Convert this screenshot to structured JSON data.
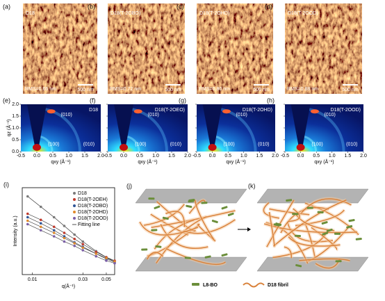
{
  "afm": [
    {
      "label": "(a)",
      "sample": "D18",
      "rms": "RMS=0.66 nm",
      "scale": "500 nm"
    },
    {
      "label": "(b)",
      "sample": "D18(T-2OBO)",
      "rms": "RMS=0.72 nm",
      "scale": "500 nm"
    },
    {
      "label": "(c)",
      "sample": "D18(T-2OHD)",
      "rms": "RMS=0.80 nm",
      "scale": "500 nm"
    },
    {
      "label": "(d)",
      "sample": "D18(T-2OOD)",
      "rms": "RMS=0.88 nm",
      "scale": "500 nm"
    }
  ],
  "giwaxs": {
    "panels": [
      {
        "label": "(e)",
        "sample": "D18",
        "peaks": [
          "(010)",
          "(100)",
          "(010)"
        ]
      },
      {
        "label": "(f)",
        "sample": "D18(T-2OEO)",
        "peaks": [
          "(010)",
          "(100)",
          "(010)"
        ]
      },
      {
        "label": "(g)",
        "sample": "D18(T-2OHD)",
        "peaks": [
          "(010)",
          "(100)",
          "(010)"
        ]
      },
      {
        "label": "(h)",
        "sample": "D18(T-2OOD)",
        "peaks": [
          "(010)",
          "(100)",
          "(010)"
        ]
      }
    ],
    "xlabel": "qxy (Å⁻¹)",
    "ylabel": "qz (Å⁻¹)",
    "xlim": [
      -0.5,
      2.0
    ],
    "ylim": [
      0,
      2.0
    ],
    "xticks": [
      -0.5,
      {
        "value": 0,
        "label": "0.0"
      },
      0.5,
      {
        "value": 1,
        "label": "1.0"
      },
      1.5,
      {
        "value": 2,
        "label": "2.0"
      }
    ],
    "yticks": [
      {
        "value": 0,
        "label": "0.0"
      },
      0.5,
      {
        "value": 1,
        "label": "1.0"
      },
      1.5,
      {
        "value": 2,
        "label": "2.0"
      }
    ]
  },
  "chart_data": {
    "type": "scatter",
    "label": "(i)",
    "xlabel": "q(Å⁻¹)",
    "ylabel": "Intensity (a.u.)",
    "xscale": "log",
    "xlim": [
      0.008,
      0.06
    ],
    "ylim": [
      0,
      1
    ],
    "xticks": [
      0.01,
      0.03,
      0.05
    ],
    "legend": "upper right",
    "fit_label": "Fitting line",
    "x": [
      0.009,
      0.012,
      0.016,
      0.02,
      0.025,
      0.03,
      0.04,
      0.05,
      0.06
    ],
    "series": [
      {
        "name": "D18",
        "color": "#7a7a7a",
        "values": [
          0.9,
          0.78,
          0.66,
          0.56,
          0.46,
          0.38,
          0.27,
          0.2,
          0.15
        ]
      },
      {
        "name": "D18(T-2OEH)",
        "color": "#c0392b",
        "values": [
          0.7,
          0.63,
          0.55,
          0.48,
          0.41,
          0.35,
          0.26,
          0.2,
          0.16
        ]
      },
      {
        "name": "D18(T-2OBO)",
        "color": "#2f5597",
        "values": [
          0.66,
          0.59,
          0.51,
          0.44,
          0.37,
          0.32,
          0.24,
          0.18,
          0.14
        ]
      },
      {
        "name": "D18(T-2OHD)",
        "color": "#e08a2a",
        "values": [
          0.62,
          0.55,
          0.48,
          0.42,
          0.36,
          0.31,
          0.24,
          0.19,
          0.15
        ]
      },
      {
        "name": "D18(T-2OOD)",
        "color": "#7b5ea7",
        "values": [
          0.58,
          0.51,
          0.44,
          0.38,
          0.33,
          0.28,
          0.21,
          0.16,
          0.13
        ]
      }
    ]
  },
  "schematic": {
    "labels": [
      "(j)",
      "(k)"
    ],
    "legend": [
      "L8-BO",
      "D18 fibril"
    ]
  }
}
